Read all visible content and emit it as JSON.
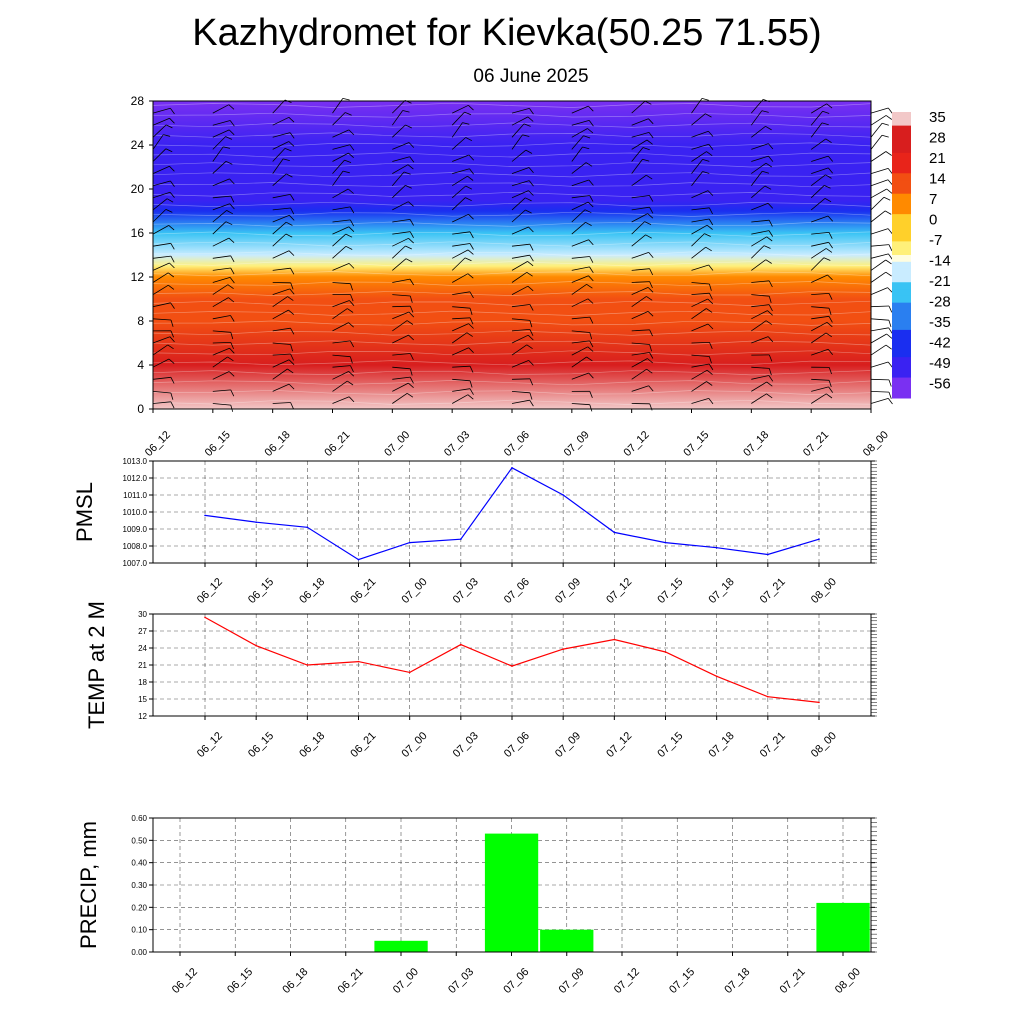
{
  "header": {
    "title": "Kazhydromet for Kievka(50.25 71.55)",
    "subtitle": "06 June 2025"
  },
  "chart_data": [
    {
      "type": "heatmap",
      "name": "cross-section",
      "y_ticks": [
        "0",
        "4",
        "8",
        "12",
        "16",
        "20",
        "24",
        "28"
      ],
      "ylim": [
        0,
        28
      ],
      "x": [
        "06_12",
        "06_15",
        "06_18",
        "06_21",
        "07_00",
        "07_03",
        "07_06",
        "07_09",
        "07_12",
        "07_15",
        "07_18",
        "07_21",
        "08_00"
      ],
      "colorbar_labels": [
        "35",
        "28",
        "21",
        "14",
        "7",
        "0",
        "-7",
        "-14",
        "-21",
        "-28",
        "-35",
        "-42",
        "-49",
        "-56"
      ],
      "colors": {
        "warm": "#e8241a",
        "orange": "#ff8a00",
        "yellow": "#ffee70",
        "cyan": "#2ab6f0",
        "blue": "#1a2ef0",
        "purple": "#7a30f2"
      },
      "temperature_profile": [
        {
          "level": 0,
          "value": 30
        },
        {
          "level": 4,
          "value": 21
        },
        {
          "level": 8,
          "value": 12
        },
        {
          "level": 10,
          "value": 7
        },
        {
          "level": 12,
          "value": 0
        },
        {
          "level": 13,
          "value": -12
        },
        {
          "level": 14,
          "value": -16
        },
        {
          "level": 16,
          "value": -30
        },
        {
          "level": 18,
          "value": -42
        },
        {
          "level": 19,
          "value": -50
        },
        {
          "level": 21,
          "value": -56
        },
        {
          "level": 24,
          "value": -52
        },
        {
          "level": 28,
          "value": -60
        }
      ],
      "wind_barbs": true
    },
    {
      "type": "line",
      "ylabel": "PMSL",
      "x": [
        "06_12",
        "06_15",
        "06_18",
        "06_21",
        "07_00",
        "07_03",
        "07_06",
        "07_09",
        "07_12",
        "07_15",
        "07_18",
        "07_21",
        "08_00"
      ],
      "values": [
        1009.8,
        1009.4,
        1009.1,
        1007.2,
        1008.2,
        1008.4,
        1012.6,
        1011.0,
        1008.8,
        1008.2,
        1007.9,
        1007.5,
        1008.4
      ],
      "y_ticks": [
        "1007.0",
        "1008.0",
        "1009.0",
        "1010.0",
        "1011.0",
        "1012.0",
        "1013.0"
      ],
      "ylim": [
        1007,
        1013
      ],
      "color": "#0000ff",
      "grid": true
    },
    {
      "type": "line",
      "ylabel": "TEMP at 2 M",
      "x": [
        "06_12",
        "06_15",
        "06_18",
        "06_21",
        "07_00",
        "07_03",
        "07_06",
        "07_09",
        "07_12",
        "07_15",
        "07_18",
        "07_21",
        "08_00"
      ],
      "values": [
        29.4,
        24.4,
        21.0,
        21.6,
        19.7,
        24.6,
        20.8,
        23.8,
        25.5,
        23.3,
        19.0,
        15.4,
        14.4
      ],
      "y_ticks": [
        "12",
        "15",
        "18",
        "21",
        "24",
        "27",
        "30"
      ],
      "ylim": [
        12,
        30
      ],
      "color": "#ff0000",
      "grid": true
    },
    {
      "type": "bar",
      "ylabel": "PRECIP, mm",
      "x": [
        "06_12",
        "06_15",
        "06_18",
        "06_21",
        "07_00",
        "07_03",
        "07_06",
        "07_09",
        "07_12",
        "07_15",
        "07_18",
        "07_21",
        "08_00"
      ],
      "values": [
        0,
        0,
        0,
        0,
        0.05,
        0,
        0.53,
        0.1,
        0,
        0,
        0,
        0,
        0.22
      ],
      "y_ticks": [
        "0.00",
        "0.10",
        "0.20",
        "0.30",
        "0.40",
        "0.50",
        "0.60"
      ],
      "ylim": [
        0,
        0.6
      ],
      "color": "#00ff00",
      "grid": true
    }
  ]
}
